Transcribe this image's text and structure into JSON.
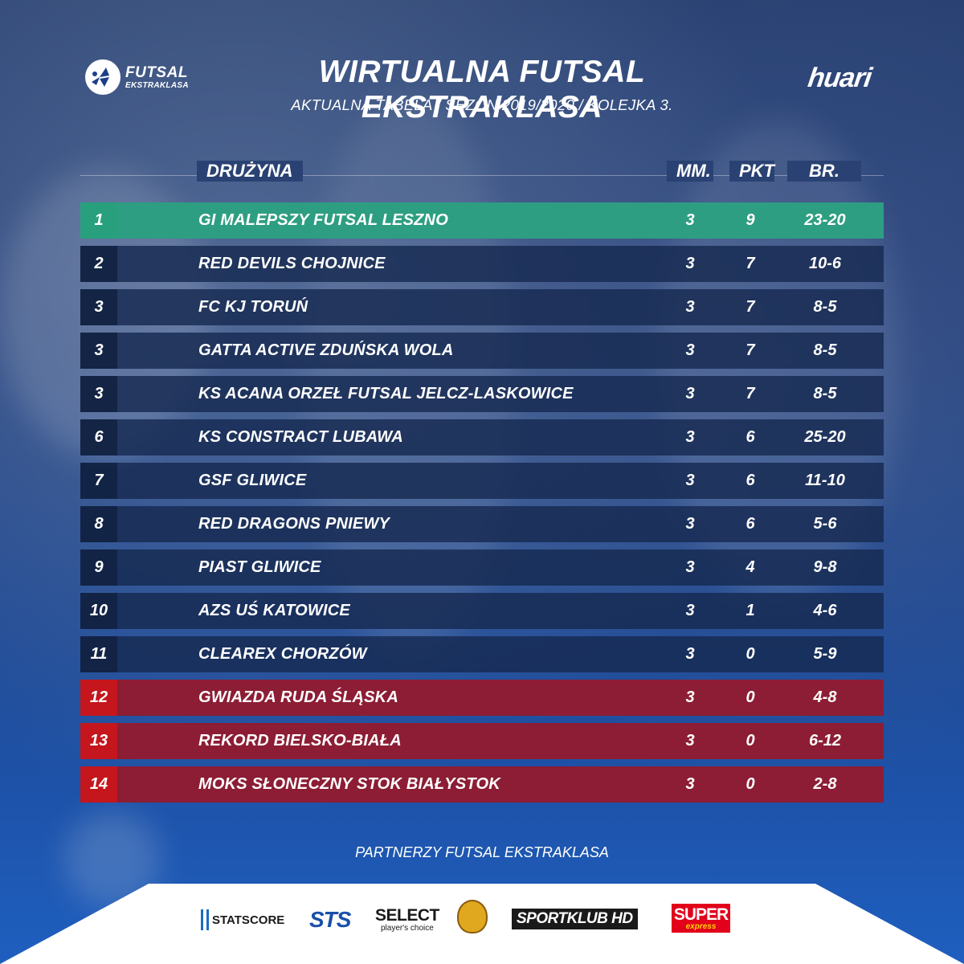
{
  "header": {
    "logo_left_line1": "FUTSAL",
    "logo_left_line2": "EKSTRAKLASA",
    "title": "WIRTUALNA FUTSAL EKSTRAKLASA",
    "subtitle": "AKTUALNA TABELA  /  SEZON 2019/2020  /  KOLEJKA 3.",
    "logo_right": "huari"
  },
  "table": {
    "headers": {
      "team": "DRUŻYNA",
      "mm": "MM.",
      "pkt": "PKT",
      "br": "BR."
    },
    "rows": [
      {
        "pos": "1",
        "team": "GI MALEPSZY FUTSAL LESZNO",
        "mm": "3",
        "pkt": "9",
        "br": "23-20",
        "status": "leader"
      },
      {
        "pos": "2",
        "team": "RED DEVILS CHOJNICE",
        "mm": "3",
        "pkt": "7",
        "br": "10-6",
        "status": "normal"
      },
      {
        "pos": "3",
        "team": "FC KJ TORUŃ",
        "mm": "3",
        "pkt": "7",
        "br": "8-5",
        "status": "normal"
      },
      {
        "pos": "3",
        "team": "GATTA ACTIVE ZDUŃSKA WOLA",
        "mm": "3",
        "pkt": "7",
        "br": "8-5",
        "status": "normal"
      },
      {
        "pos": "3",
        "team": "KS ACANA ORZEŁ FUTSAL JELCZ-LASKOWICE",
        "mm": "3",
        "pkt": "7",
        "br": "8-5",
        "status": "normal"
      },
      {
        "pos": "6",
        "team": "KS CONSTRACT LUBAWA",
        "mm": "3",
        "pkt": "6",
        "br": "25-20",
        "status": "normal"
      },
      {
        "pos": "7",
        "team": "GSF GLIWICE",
        "mm": "3",
        "pkt": "6",
        "br": "11-10",
        "status": "normal"
      },
      {
        "pos": "8",
        "team": "RED DRAGONS PNIEWY",
        "mm": "3",
        "pkt": "6",
        "br": "5-6",
        "status": "normal"
      },
      {
        "pos": "9",
        "team": "PIAST GLIWICE",
        "mm": "3",
        "pkt": "4",
        "br": "9-8",
        "status": "normal"
      },
      {
        "pos": "10",
        "team": "AZS UŚ KATOWICE",
        "mm": "3",
        "pkt": "1",
        "br": "4-6",
        "status": "normal"
      },
      {
        "pos": "11",
        "team": "CLEAREX CHORZÓW",
        "mm": "3",
        "pkt": "0",
        "br": "5-9",
        "status": "normal"
      },
      {
        "pos": "12",
        "team": "GWIAZDA RUDA ŚLĄSKA",
        "mm": "3",
        "pkt": "0",
        "br": "4-8",
        "status": "relegation"
      },
      {
        "pos": "13",
        "team": "REKORD BIELSKO-BIAŁA",
        "mm": "3",
        "pkt": "0",
        "br": "6-12",
        "status": "relegation"
      },
      {
        "pos": "14",
        "team": "MOKS SŁONECZNY STOK BIAŁYSTOK",
        "mm": "3",
        "pkt": "0",
        "br": "2-8",
        "status": "relegation"
      }
    ]
  },
  "partners": {
    "label": "PARTNERZY FUTSAL EKSTRAKLASA",
    "statscore": "STATSCORE",
    "sts": "STS",
    "select_line1": "SELECT",
    "select_line2": "player's choice",
    "sportklub": "SPORTKLUB HD",
    "super_line1": "SUPER",
    "super_line2": "express"
  },
  "colors": {
    "leader": "#2e9e82",
    "relegation_row": "#8c1d34",
    "relegation_pos": "#c4161c",
    "row": "#162a50"
  },
  "icons": {
    "logo_left": "futsal-ball-logo-icon",
    "badge_sponsor": "club-crest-icon"
  }
}
